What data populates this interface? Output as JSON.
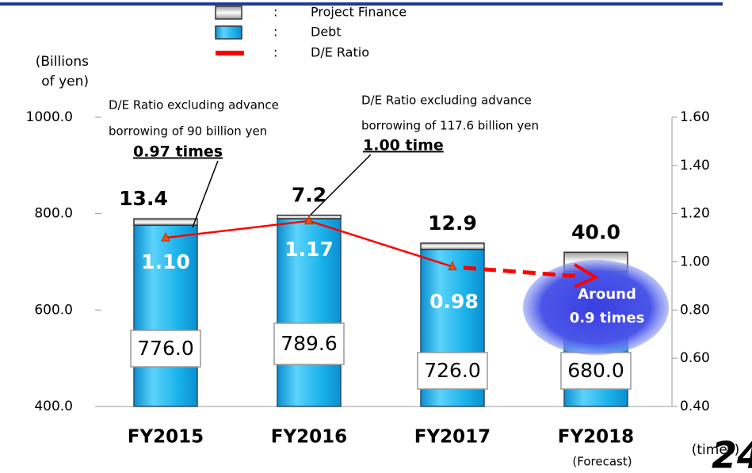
{
  "chart_data": {
    "type": "bar",
    "stacked": true,
    "categories": [
      "FY2015",
      "FY2016",
      "FY2017",
      "FY2018"
    ],
    "category_notes": [
      null,
      null,
      null,
      "(Forecast)"
    ],
    "y_label": [
      "(Billions",
      "of yen)"
    ],
    "y2_label": "(times)",
    "ylim": [
      400,
      1000
    ],
    "yticks": [
      {
        "value": 400,
        "label": "400.0"
      },
      {
        "value": 600,
        "label": "600.0"
      },
      {
        "value": 800,
        "label": "800.0"
      },
      {
        "value": 1000,
        "label": "1000.0"
      }
    ],
    "y2lim": [
      0.4,
      1.6
    ],
    "y2ticks": [
      {
        "value": 0.4,
        "label": "0.40"
      },
      {
        "value": 0.6,
        "label": "0.60"
      },
      {
        "value": 0.8,
        "label": "0.80"
      },
      {
        "value": 1.0,
        "label": "1.00"
      },
      {
        "value": 1.2,
        "label": "1.20"
      },
      {
        "value": 1.4,
        "label": "1.40"
      },
      {
        "value": 1.6,
        "label": "1.60"
      }
    ],
    "legend_separator": ":",
    "series": [
      {
        "name": "Project Finance",
        "color": "#d9d9d9",
        "values": [
          13.4,
          7.2,
          12.9,
          40.0
        ],
        "value_labels": [
          "13.4",
          "7.2",
          "12.9",
          "40.0"
        ]
      },
      {
        "name": "Debt",
        "color": "#1ab2ea",
        "values": [
          776.0,
          789.6,
          726.0,
          680.0
        ],
        "value_labels": [
          "776.0",
          "789.6",
          "726.0",
          "680.0"
        ]
      },
      {
        "name": "D/E Ratio",
        "color": "#ff0000",
        "type": "line",
        "axis": "y2",
        "values": [
          1.1,
          1.17,
          0.98,
          null
        ],
        "value_labels": [
          "1.10",
          "1.17",
          "0.98",
          null
        ]
      }
    ],
    "annotations": [
      {
        "lines": [
          "D/E Ratio  excluding advance",
          "borrowing of  90 billion yen"
        ],
        "emphasis": "0.97 times"
      },
      {
        "lines": [
          "D/E Ratio  excluding  advance",
          "borrowing of  117.6 billion yen"
        ],
        "emphasis": "1.00 time"
      },
      {
        "lines": [
          "Around",
          "0.9 times"
        ]
      }
    ],
    "page_number": "24"
  }
}
